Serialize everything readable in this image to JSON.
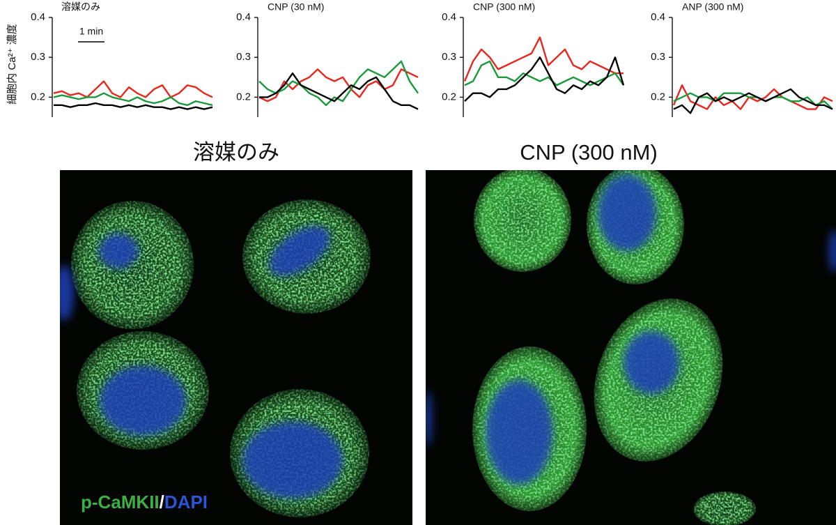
{
  "chart_data": [
    {
      "type": "line",
      "title": "溶媒のみ",
      "ylabel": "細胞内 Ca²⁺ 濃度",
      "scale_bar_label": "1 min",
      "ylim": [
        0.15,
        0.4
      ],
      "yticks": [
        0.2,
        0.3,
        0.4
      ],
      "series": [
        {
          "color": "#e8261c",
          "values": [
            0.21,
            0.215,
            0.205,
            0.21,
            0.2,
            0.22,
            0.24,
            0.21,
            0.2,
            0.225,
            0.21,
            0.2,
            0.22,
            0.23,
            0.2,
            0.21,
            0.23,
            0.225,
            0.21,
            0.2
          ]
        },
        {
          "color": "#1a9a3a",
          "values": [
            0.2,
            0.205,
            0.2,
            0.195,
            0.2,
            0.2,
            0.21,
            0.2,
            0.195,
            0.19,
            0.2,
            0.19,
            0.185,
            0.19,
            0.2,
            0.185,
            0.18,
            0.19,
            0.185,
            0.18
          ]
        },
        {
          "color": "#000000",
          "values": [
            0.18,
            0.18,
            0.175,
            0.18,
            0.18,
            0.185,
            0.18,
            0.18,
            0.175,
            0.18,
            0.175,
            0.18,
            0.175,
            0.175,
            0.17,
            0.175,
            0.17,
            0.175,
            0.17,
            0.175
          ]
        }
      ]
    },
    {
      "type": "line",
      "title": "CNP (30 nM)",
      "ylim": [
        0.15,
        0.4
      ],
      "yticks": [
        0.2,
        0.3,
        0.4
      ],
      "series": [
        {
          "color": "#e8261c",
          "values": [
            0.2,
            0.19,
            0.2,
            0.24,
            0.22,
            0.24,
            0.25,
            0.27,
            0.25,
            0.24,
            0.25,
            0.22,
            0.2,
            0.23,
            0.24,
            0.22,
            0.23,
            0.27,
            0.26,
            0.25
          ]
        },
        {
          "color": "#1a9a3a",
          "values": [
            0.24,
            0.22,
            0.21,
            0.22,
            0.24,
            0.23,
            0.21,
            0.2,
            0.18,
            0.2,
            0.19,
            0.22,
            0.25,
            0.27,
            0.26,
            0.25,
            0.27,
            0.29,
            0.24,
            0.21
          ]
        },
        {
          "color": "#000000",
          "values": [
            0.2,
            0.2,
            0.21,
            0.23,
            0.26,
            0.23,
            0.22,
            0.21,
            0.2,
            0.19,
            0.21,
            0.23,
            0.22,
            0.24,
            0.25,
            0.22,
            0.19,
            0.18,
            0.18,
            0.17
          ]
        }
      ]
    },
    {
      "type": "line",
      "title": "CNP (300 nM)",
      "ylim": [
        0.15,
        0.4
      ],
      "yticks": [
        0.2,
        0.3,
        0.4
      ],
      "series": [
        {
          "color": "#e8261c",
          "values": [
            0.24,
            0.29,
            0.32,
            0.3,
            0.27,
            0.28,
            0.29,
            0.3,
            0.31,
            0.35,
            0.28,
            0.3,
            0.32,
            0.28,
            0.27,
            0.29,
            0.28,
            0.27,
            0.26,
            0.26
          ]
        },
        {
          "color": "#1a9a3a",
          "values": [
            0.23,
            0.24,
            0.28,
            0.29,
            0.25,
            0.25,
            0.24,
            0.26,
            0.25,
            0.24,
            0.25,
            0.23,
            0.24,
            0.25,
            0.24,
            0.23,
            0.24,
            0.25,
            0.26,
            0.23
          ]
        },
        {
          "color": "#000000",
          "values": [
            0.19,
            0.21,
            0.21,
            0.2,
            0.22,
            0.22,
            0.23,
            0.25,
            0.27,
            0.3,
            0.26,
            0.22,
            0.21,
            0.23,
            0.22,
            0.24,
            0.23,
            0.25,
            0.3,
            0.23
          ]
        }
      ]
    },
    {
      "type": "line",
      "title": "ANP (300 nM)",
      "ylim": [
        0.15,
        0.4
      ],
      "yticks": [
        0.2,
        0.3,
        0.4
      ],
      "series": [
        {
          "color": "#e8261c",
          "values": [
            0.18,
            0.23,
            0.19,
            0.18,
            0.17,
            0.2,
            0.18,
            0.19,
            0.17,
            0.2,
            0.19,
            0.2,
            0.22,
            0.2,
            0.19,
            0.18,
            0.17,
            0.17,
            0.2,
            0.19
          ]
        },
        {
          "color": "#1a9a3a",
          "values": [
            0.19,
            0.2,
            0.21,
            0.2,
            0.2,
            0.19,
            0.21,
            0.21,
            0.21,
            0.2,
            0.2,
            0.19,
            0.2,
            0.2,
            0.19,
            0.19,
            0.2,
            0.18,
            0.19,
            0.17
          ]
        },
        {
          "color": "#000000",
          "values": [
            0.17,
            0.18,
            0.16,
            0.2,
            0.21,
            0.19,
            0.2,
            0.19,
            0.2,
            0.21,
            0.2,
            0.19,
            0.2,
            0.21,
            0.22,
            0.2,
            0.19,
            0.18,
            0.18,
            0.17
          ]
        }
      ]
    }
  ],
  "images": [
    {
      "title": "溶媒のみ"
    },
    {
      "title": "CNP (300 nM)"
    }
  ],
  "stain_label": {
    "marker": "p-CaMKII",
    "separator": "/",
    "counterstain": "DAPI"
  }
}
